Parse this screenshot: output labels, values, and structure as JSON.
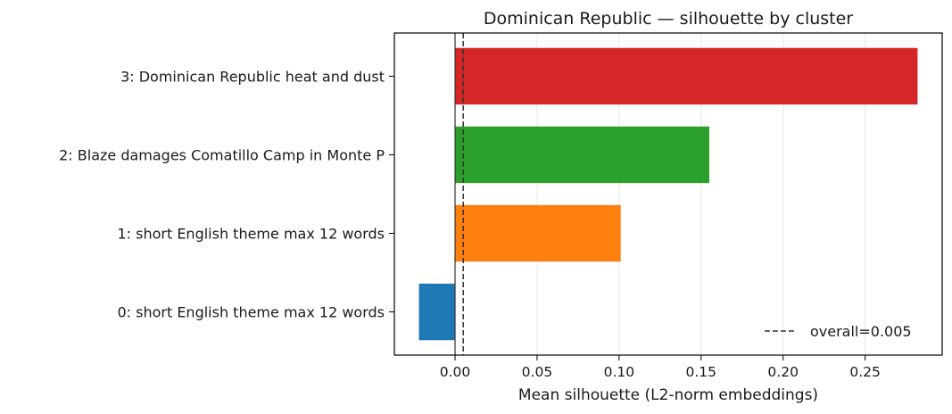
{
  "chart_data": {
    "type": "bar",
    "orientation": "horizontal",
    "title": "Dominican Republic — silhouette by cluster",
    "xlabel": "Mean silhouette (L2-norm embeddings)",
    "ylabel": "",
    "xlim": [
      -0.037,
      0.297
    ],
    "xticks": [
      {
        "value": 0.0,
        "label": "0.00"
      },
      {
        "value": 0.05,
        "label": "0.05"
      },
      {
        "value": 0.1,
        "label": "0.10"
      },
      {
        "value": 0.15,
        "label": "0.15"
      },
      {
        "value": 0.2,
        "label": "0.20"
      },
      {
        "value": 0.25,
        "label": "0.25"
      }
    ],
    "grid": "x",
    "legend": {
      "position": "bottom-right",
      "entries": [
        "overall=0.005"
      ]
    },
    "categories": [
      "0: short English theme max 12 words",
      "1: short English theme max 12 words",
      "2: Blaze damages Comatillo Camp in Monte P",
      "3: Dominican Republic heat and dust"
    ],
    "values": [
      -0.022,
      0.101,
      0.155,
      0.282
    ],
    "colors": [
      "#1f77b4",
      "#ff7f0e",
      "#2ca02c",
      "#d62728"
    ],
    "reference_line": {
      "value": 0.005,
      "label": "overall=0.005",
      "style": "dashed"
    }
  }
}
